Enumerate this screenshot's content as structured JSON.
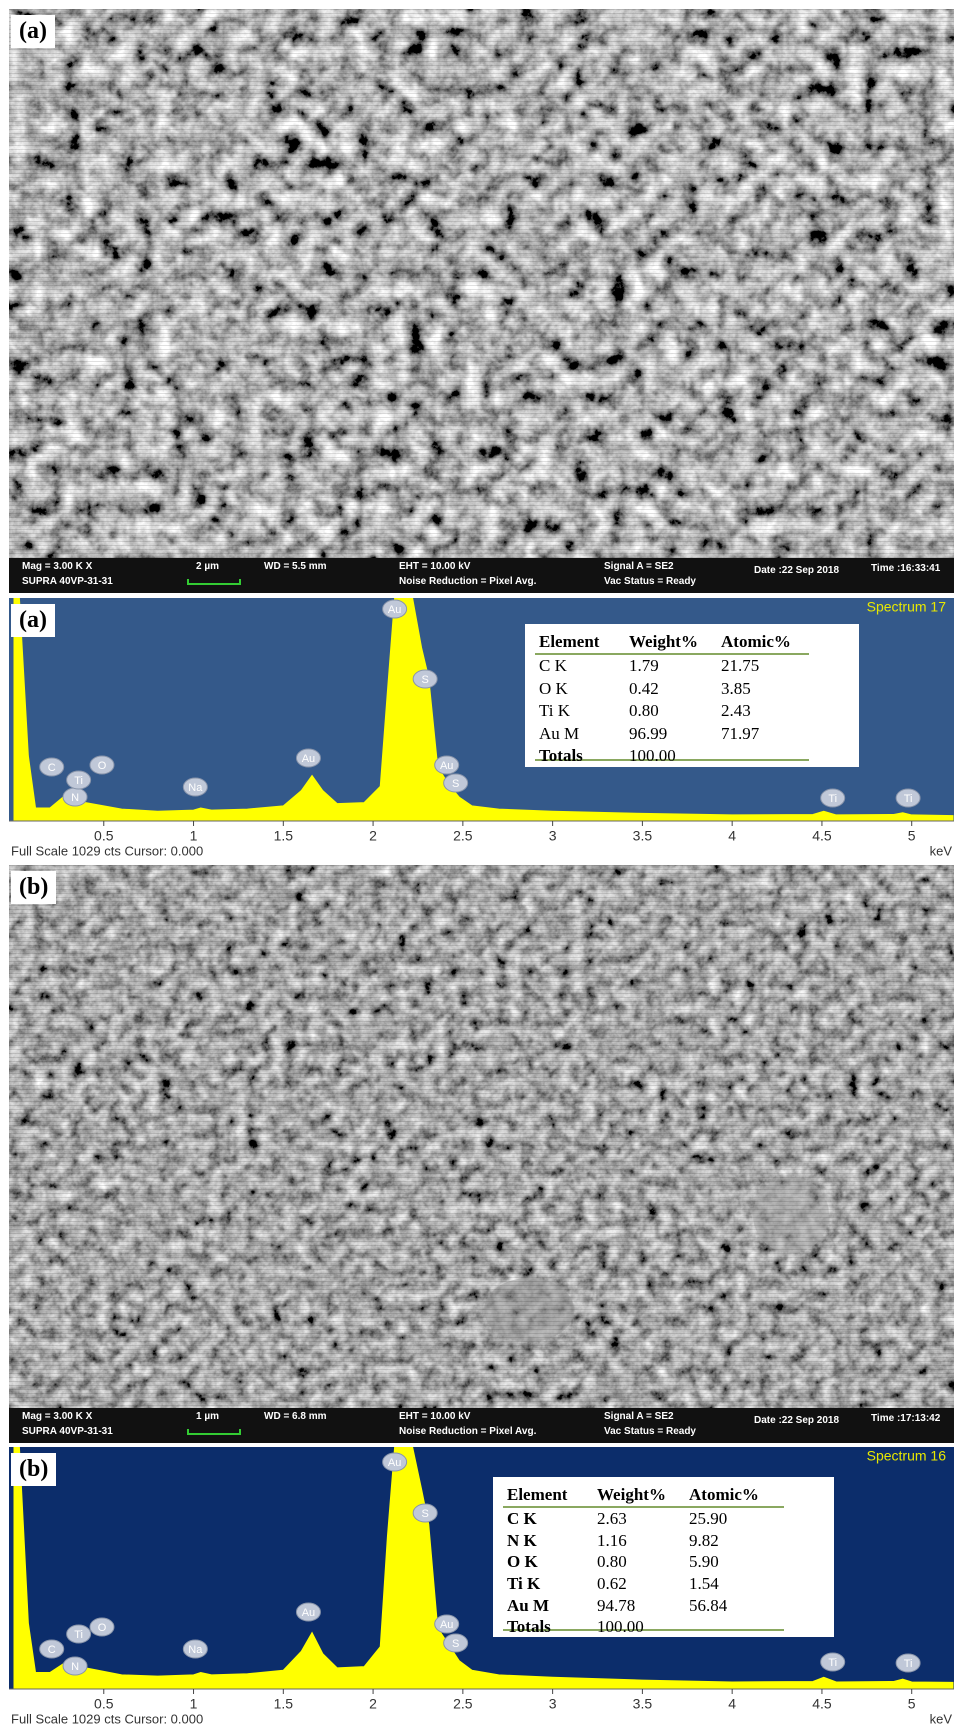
{
  "images": [
    {
      "label": "(a)",
      "info": [
        "Mag =  3.00 K X",
        "2 µm",
        "WD =  5.5 mm",
        "EHT = 10.00 kV",
        "Signal A = SE2",
        "Date :22 Sep 2018",
        "Time :16:33:41",
        "SUPRA 40VP-31-31",
        "Noise Reduction = Pixel Avg.",
        "Vac Status = Ready"
      ]
    },
    {
      "label": "(b)",
      "info": [
        "Mag =  3.00 K X",
        "1 µm",
        "WD =  6.8 mm",
        "EHT = 10.00 kV",
        "Signal A = SE2",
        "Date :22 Sep 2018",
        "Time :17:13:42",
        "SUPRA 40VP-31-31",
        "Noise Reduction = Pixel Avg.",
        "Vac Status = Ready"
      ]
    }
  ],
  "chart_data": [
    {
      "type": "area",
      "title": "Spectrum 17",
      "panel_label": "(a)",
      "color": "#ffff00",
      "background": "#34598a",
      "x": [
        0,
        0.03,
        0.08,
        0.12,
        0.2,
        0.28,
        0.34,
        0.4,
        0.5,
        0.6,
        0.8,
        1.0,
        1.04,
        1.1,
        1.3,
        1.5,
        1.6,
        1.66,
        1.72,
        1.8,
        1.95,
        2.04,
        2.08,
        2.12,
        2.22,
        2.27,
        2.31,
        2.36,
        2.42,
        2.48,
        2.55,
        2.7,
        3.0,
        3.5,
        4.0,
        4.45,
        4.51,
        4.58,
        4.9,
        4.95,
        5.0,
        5.23
      ],
      "values": [
        1029,
        1029,
        300,
        60,
        60,
        115,
        70,
        85,
        70,
        55,
        45,
        50,
        60,
        50,
        55,
        70,
        140,
        210,
        140,
        80,
        85,
        160,
        600,
        1029,
        1029,
        800,
        660,
        250,
        170,
        110,
        70,
        55,
        45,
        35,
        28,
        30,
        45,
        28,
        30,
        38,
        28,
        25
      ],
      "xlim": [
        0,
        5.23
      ],
      "xticks": [
        0.5,
        1,
        1.5,
        2,
        2.5,
        3,
        3.5,
        4,
        4.5,
        5
      ],
      "ylim": [
        0,
        1029
      ],
      "x_unit": "keV",
      "footer": "Full Scale 1029 cts Cursor: 0.000",
      "peaks": [
        {
          "label": "C",
          "x": 0.21
        },
        {
          "label": "N",
          "x": 0.34
        },
        {
          "label": "Ti",
          "x": 0.36
        },
        {
          "label": "O",
          "x": 0.49
        },
        {
          "label": "Na",
          "x": 1.01
        },
        {
          "label": "Au",
          "x": 1.64
        },
        {
          "label": "Au",
          "x": 2.12
        },
        {
          "label": "S",
          "x": 2.29
        },
        {
          "label": "Au",
          "x": 2.41
        },
        {
          "label": "S",
          "x": 2.46
        },
        {
          "label": "Ti",
          "x": 4.56
        },
        {
          "label": "Ti",
          "x": 4.98
        }
      ],
      "table": {
        "columns": [
          "Element",
          "Weight%",
          "Atomic%"
        ],
        "rows": [
          [
            "C K",
            "1.79",
            "21.75"
          ],
          [
            "O K",
            "0.42",
            "3.85"
          ],
          [
            "Ti K",
            "0.80",
            "2.43"
          ],
          [
            "Au M",
            "96.99",
            "71.97"
          ],
          [
            "Totals",
            "100.00"
          ]
        ]
      }
    },
    {
      "type": "area",
      "title": "Spectrum 16",
      "panel_label": "(b)",
      "color": "#ffff00",
      "background": "#0c2d6b",
      "x": [
        0,
        0.03,
        0.08,
        0.12,
        0.2,
        0.28,
        0.34,
        0.4,
        0.5,
        0.6,
        0.8,
        1.0,
        1.04,
        1.1,
        1.3,
        1.5,
        1.6,
        1.66,
        1.72,
        1.8,
        1.95,
        2.04,
        2.08,
        2.12,
        2.22,
        2.27,
        2.31,
        2.36,
        2.42,
        2.48,
        2.55,
        2.7,
        3.0,
        3.5,
        4.0,
        4.45,
        4.51,
        4.58,
        4.9,
        4.95,
        5.0,
        5.23
      ],
      "values": [
        1029,
        1029,
        280,
        70,
        70,
        110,
        80,
        90,
        75,
        60,
        55,
        60,
        70,
        60,
        65,
        80,
        160,
        240,
        150,
        90,
        95,
        180,
        650,
        1029,
        1029,
        850,
        700,
        260,
        190,
        120,
        80,
        60,
        50,
        38,
        30,
        32,
        50,
        30,
        32,
        42,
        30,
        28
      ],
      "xlim": [
        0,
        5.23
      ],
      "xticks": [
        0.5,
        1,
        1.5,
        2,
        2.5,
        3,
        3.5,
        4,
        4.5,
        5
      ],
      "ylim": [
        0,
        1029
      ],
      "x_unit": "keV",
      "footer": "Full Scale 1029 cts Cursor: 0.000",
      "peaks": [
        {
          "label": "C",
          "x": 0.21
        },
        {
          "label": "N",
          "x": 0.34
        },
        {
          "label": "Ti",
          "x": 0.36
        },
        {
          "label": "O",
          "x": 0.49
        },
        {
          "label": "Na",
          "x": 1.01
        },
        {
          "label": "Au",
          "x": 1.64
        },
        {
          "label": "Au",
          "x": 2.12
        },
        {
          "label": "S",
          "x": 2.29
        },
        {
          "label": "Au",
          "x": 2.41
        },
        {
          "label": "S",
          "x": 2.46
        },
        {
          "label": "Ti",
          "x": 4.56
        },
        {
          "label": "Ti",
          "x": 4.98
        }
      ],
      "table": {
        "columns": [
          "Element",
          "Weight%",
          "Atomic%"
        ],
        "rows": [
          [
            "C K",
            "2.63",
            "25.90"
          ],
          [
            "N K",
            "1.16",
            "9.82"
          ],
          [
            "O K",
            "0.80",
            "5.90"
          ],
          [
            "Ti K",
            "0.62",
            "1.54"
          ],
          [
            "Au M",
            "94.78",
            "56.84"
          ],
          [
            "Totals",
            "100.00"
          ]
        ]
      }
    }
  ]
}
